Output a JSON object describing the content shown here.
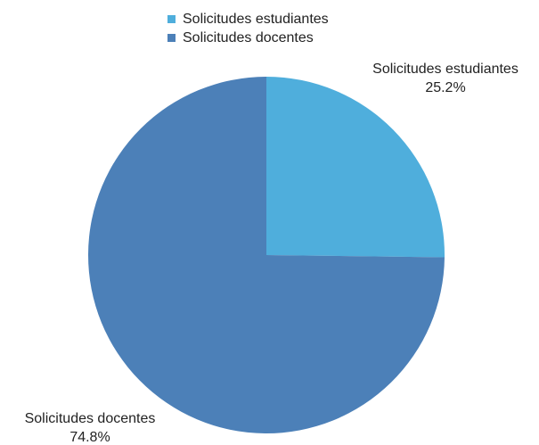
{
  "chart_data": {
    "type": "pie",
    "title": "",
    "legend_position": "top",
    "start": "12 o'clock, clockwise",
    "slices": [
      {
        "name": "Solicitudes estudiantes",
        "value": 25.2,
        "value_label": "25.2%",
        "color": "#4FAEDC"
      },
      {
        "name": "Solicitudes docentes",
        "value": 74.8,
        "value_label": "74.8%",
        "color": "#4C80B8"
      }
    ]
  }
}
